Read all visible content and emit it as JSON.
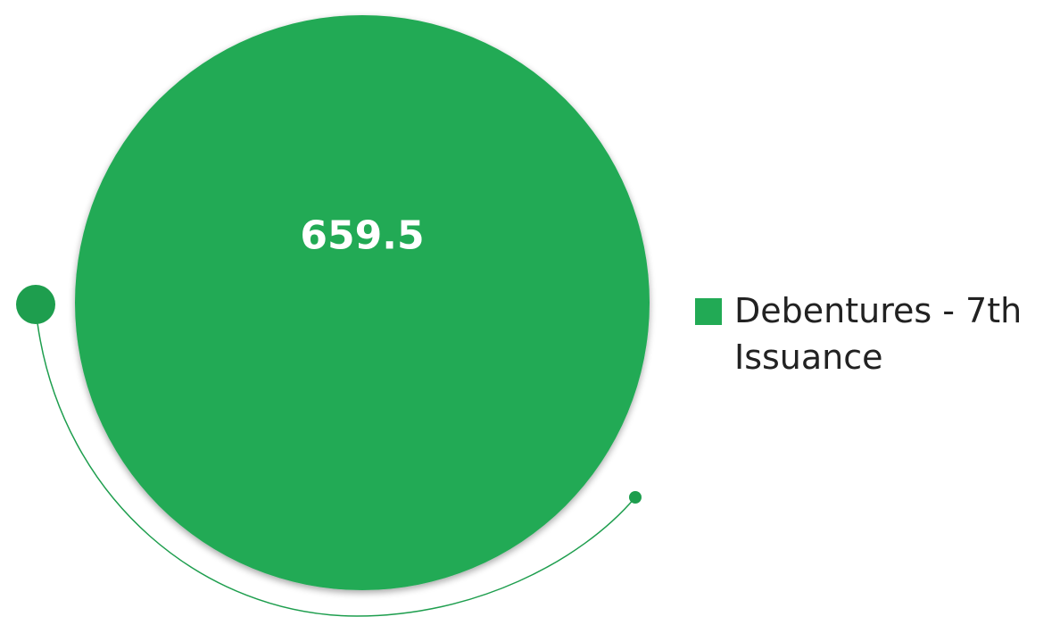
{
  "chart_data": {
    "type": "pie",
    "categories": [
      "Debentures - 7th Issuance"
    ],
    "values": [
      659.5
    ],
    "data_labels": [
      "659.5"
    ],
    "legend": {
      "position": "right",
      "entries": [
        "Debentures - 7th Issuance"
      ]
    },
    "colors": {
      "series": "#22AA55",
      "decoration": "#1E9E4E",
      "label": "#FFFFFF"
    }
  }
}
